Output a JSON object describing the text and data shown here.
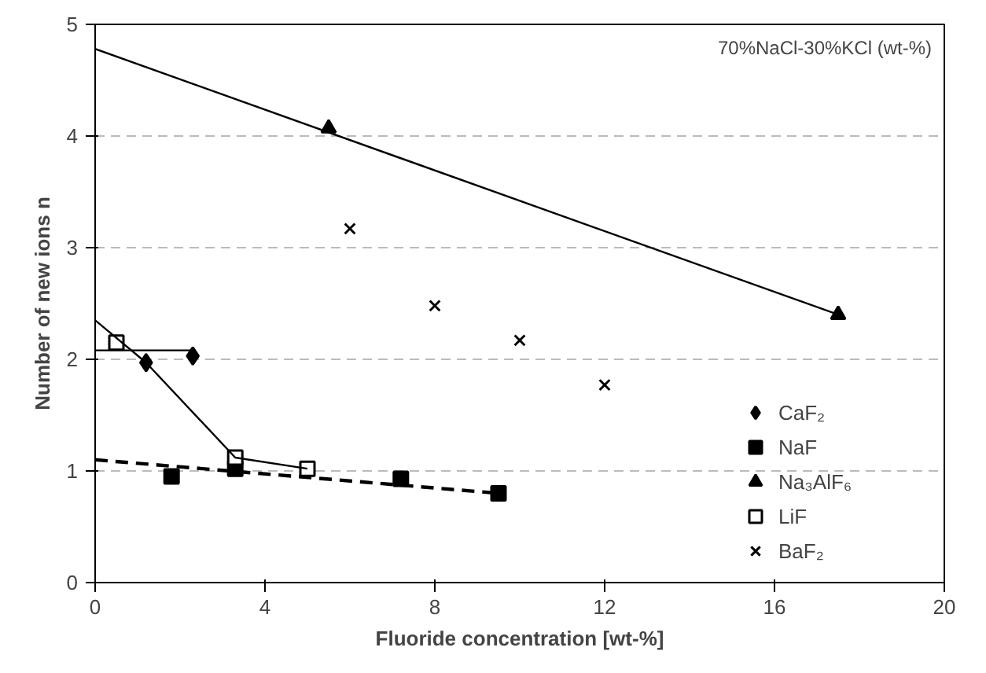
{
  "chart_data": {
    "type": "scatter",
    "xlabel": "Fluoride concentration [wt-%]",
    "ylabel": "Number of new ions n",
    "xlim": [
      0,
      20
    ],
    "ylim": [
      0,
      5
    ],
    "xticks": [
      0,
      4,
      8,
      12,
      16,
      20
    ],
    "yticks": [
      0,
      1,
      2,
      3,
      4,
      5
    ],
    "grid": "y",
    "legend": "right",
    "annotations": [
      "70%NaCl-30%KCl (wt-%)"
    ],
    "series": [
      {
        "name": "CaF₂",
        "color": "#000000",
        "marker": "diamond",
        "x": [
          1.2,
          2.3
        ],
        "values": [
          1.97,
          2.03
        ]
      },
      {
        "name": "NaF",
        "color": "#000000",
        "marker": "square",
        "x": [
          1.8,
          3.3,
          7.2,
          9.5
        ],
        "values": [
          0.95,
          1.02,
          0.93,
          0.8
        ]
      },
      {
        "name": "Na₃AlF₆",
        "color": "#000000",
        "marker": "triangle",
        "x": [
          5.5,
          17.5
        ],
        "values": [
          4.07,
          2.4
        ]
      },
      {
        "name": "LiF",
        "color": "#000000",
        "marker": "square_open",
        "x": [
          0.5,
          3.3,
          5.0
        ],
        "values": [
          2.15,
          1.12,
          1.02
        ]
      },
      {
        "name": "BaF₂",
        "color": "#000000",
        "marker": "x",
        "x": [
          6,
          8,
          10,
          12
        ],
        "values": [
          3.17,
          2.48,
          2.17,
          1.77
        ]
      },
      {
        "type": "line",
        "color": "#000000",
        "line_style": "solid",
        "x": [
          0,
          2.3
        ],
        "values": [
          2.08,
          2.08
        ]
      },
      {
        "type": "line",
        "color": "#000000",
        "line_style": "solid",
        "x": [
          0,
          1.2,
          3.3,
          5.0
        ],
        "values": [
          2.35,
          1.97,
          1.12,
          1.02
        ]
      },
      {
        "type": "line",
        "color": "#000000",
        "line_style": "dashed",
        "x": [
          0,
          9.5
        ],
        "values": [
          1.1,
          0.8
        ]
      },
      {
        "type": "line",
        "color": "#000000",
        "line_style": "solid",
        "x": [
          0,
          17.5
        ],
        "values": [
          4.78,
          2.4
        ]
      }
    ]
  }
}
